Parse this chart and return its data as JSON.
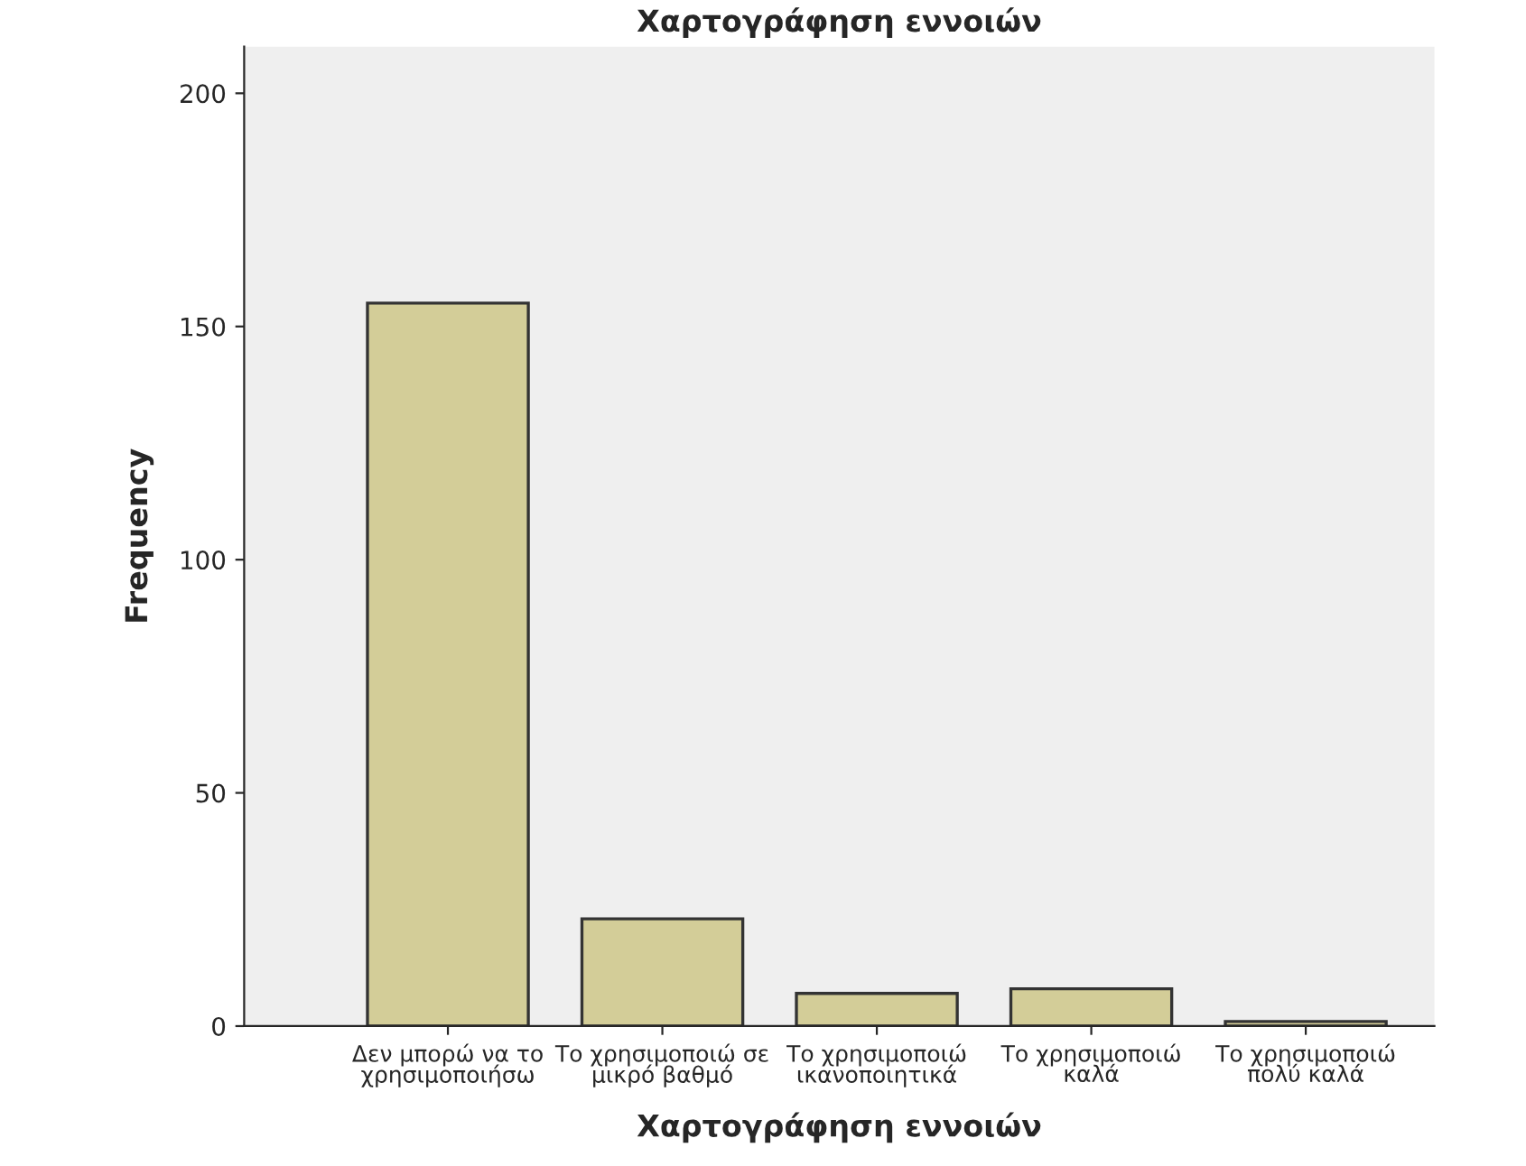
{
  "chart_data": {
    "type": "bar",
    "title": "Χαρτογράφηση εννοιών",
    "xlabel": "Χαρτογράφηση εννοιών",
    "ylabel": "Frequency",
    "categories": [
      "Δεν μπορώ να το\nχρησιμοποιήσω",
      "Το χρησιμοποιώ σε\nμικρό βαθμό",
      "Το χρησιμοποιώ\nικανοποιητικά",
      "Το χρησιμοποιώ\nκαλά",
      "Το χρησιμοποιώ\nπολύ καλά"
    ],
    "values": [
      155,
      23,
      7,
      8,
      1
    ],
    "color": "#d3cd98",
    "ylim": [
      0,
      210
    ],
    "yticks": [
      0,
      50,
      100,
      150,
      200
    ],
    "grid": false
  }
}
